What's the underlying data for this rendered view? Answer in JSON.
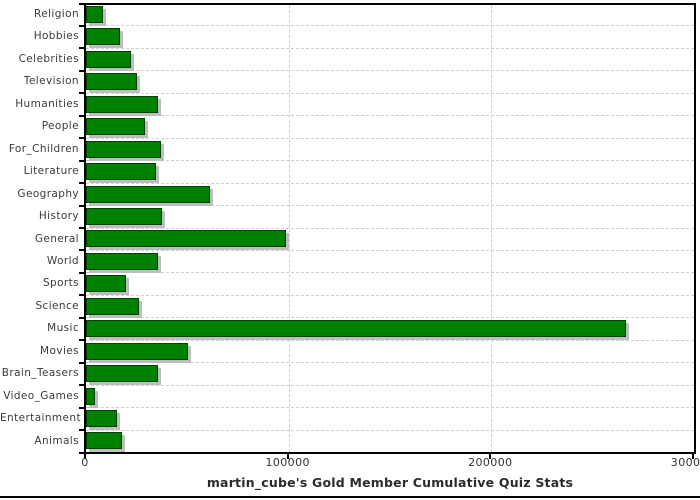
{
  "chart_data": {
    "type": "bar",
    "orientation": "horizontal",
    "title": "martin_cube's Gold Member Cumulative Quiz Stats",
    "categories": [
      "Religion",
      "Hobbies",
      "Celebrities",
      "Television",
      "Humanities",
      "People",
      "For_Children",
      "Literature",
      "Geography",
      "History",
      "General",
      "World",
      "Sports",
      "Science",
      "Music",
      "Movies",
      "Brain_Teasers",
      "Video_Games",
      "Entertainment",
      "Animals"
    ],
    "values": [
      8200,
      16700,
      22300,
      24900,
      35300,
      29000,
      36900,
      34400,
      61000,
      37500,
      98900,
      35600,
      19700,
      26100,
      266300,
      50300,
      35600,
      4400,
      15100,
      17900
    ],
    "x_ticks": [
      {
        "label": "0",
        "value": 0
      },
      {
        "label": "100000",
        "value": 100000
      },
      {
        "label": "200000",
        "value": 200000
      },
      {
        "label": "300000",
        "value": 300000
      }
    ],
    "xlim": [
      0,
      300000
    ],
    "grid": "dashed",
    "legend_position": "none",
    "colors": {
      "bar_fill": "#008000",
      "bar_border": "#004400",
      "bar_shadow": "#bebebe",
      "axis": "#000000",
      "gridline": "#cfcfcf",
      "tick_label": "#333333",
      "category_label": "#3a3a3a",
      "title": "#2b2b2b",
      "background": "#ffffff"
    }
  }
}
